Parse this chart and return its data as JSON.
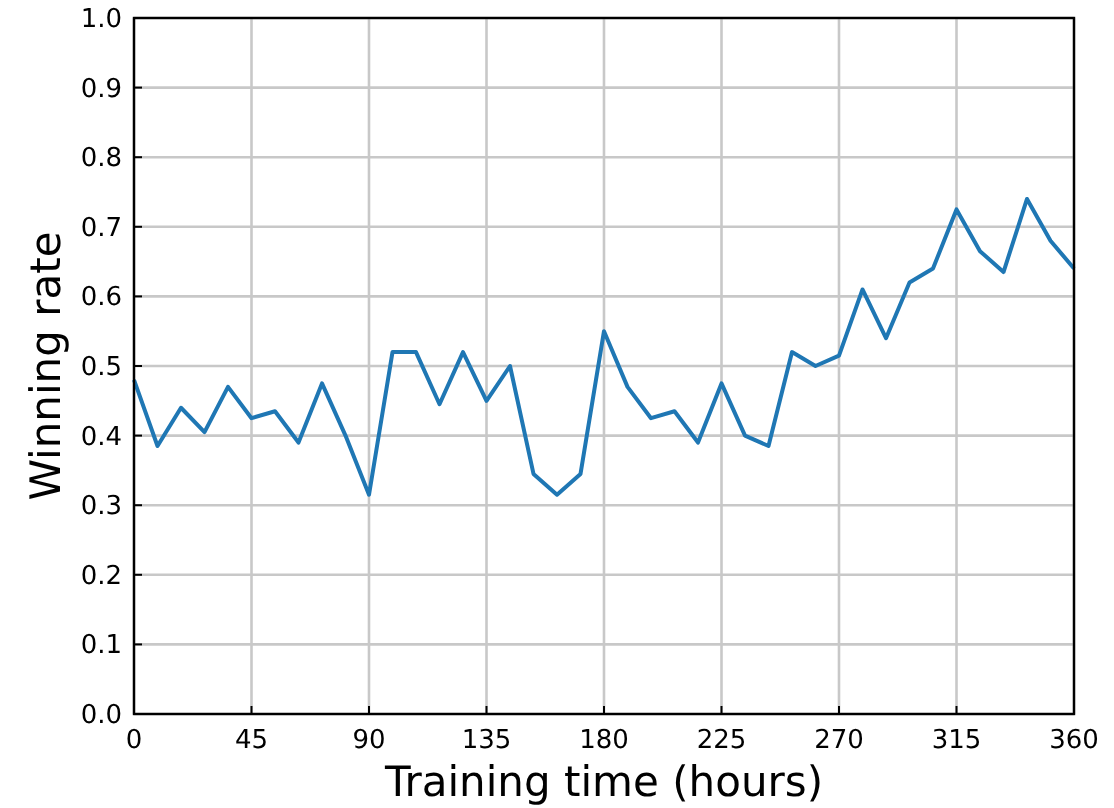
{
  "chart_data": {
    "type": "line",
    "xlabel": "Training time (hours)",
    "ylabel": "Winning rate",
    "x": [
      0,
      9,
      18,
      27,
      36,
      45,
      54,
      63,
      72,
      81,
      90,
      99,
      108,
      117,
      126,
      135,
      144,
      153,
      162,
      171,
      180,
      189,
      198,
      207,
      216,
      225,
      234,
      243,
      252,
      261,
      270,
      279,
      288,
      297,
      306,
      315,
      324,
      333,
      342,
      351,
      360
    ],
    "series": [
      {
        "color": "#1f77b4",
        "values": [
          0.48,
          0.385,
          0.44,
          0.405,
          0.47,
          0.425,
          0.435,
          0.39,
          0.475,
          0.4,
          0.315,
          0.52,
          0.52,
          0.445,
          0.52,
          0.45,
          0.5,
          0.345,
          0.315,
          0.345,
          0.55,
          0.47,
          0.425,
          0.435,
          0.39,
          0.475,
          0.4,
          0.385,
          0.52,
          0.5,
          0.515,
          0.61,
          0.54,
          0.62,
          0.64,
          0.725,
          0.665,
          0.635,
          0.74,
          0.68,
          0.64
        ]
      }
    ],
    "xlim": [
      0,
      360
    ],
    "xticks": [
      0,
      45,
      90,
      135,
      180,
      225,
      270,
      315,
      360
    ],
    "ylim": [
      0,
      1
    ],
    "yticks": [
      {
        "value": 0,
        "label": "0.0"
      },
      {
        "value": 0.1,
        "label": "0.1"
      },
      {
        "value": 0.2,
        "label": "0.2"
      },
      {
        "value": 0.3,
        "label": "0.3"
      },
      {
        "value": 0.4,
        "label": "0.4"
      },
      {
        "value": 0.5,
        "label": "0.5"
      },
      {
        "value": 0.6,
        "label": "0.6"
      },
      {
        "value": 0.7,
        "label": "0.7"
      },
      {
        "value": 0.8,
        "label": "0.8"
      },
      {
        "value": 0.9,
        "label": "0.9"
      },
      {
        "value": 1,
        "label": "1.0"
      }
    ],
    "grid": true
  }
}
